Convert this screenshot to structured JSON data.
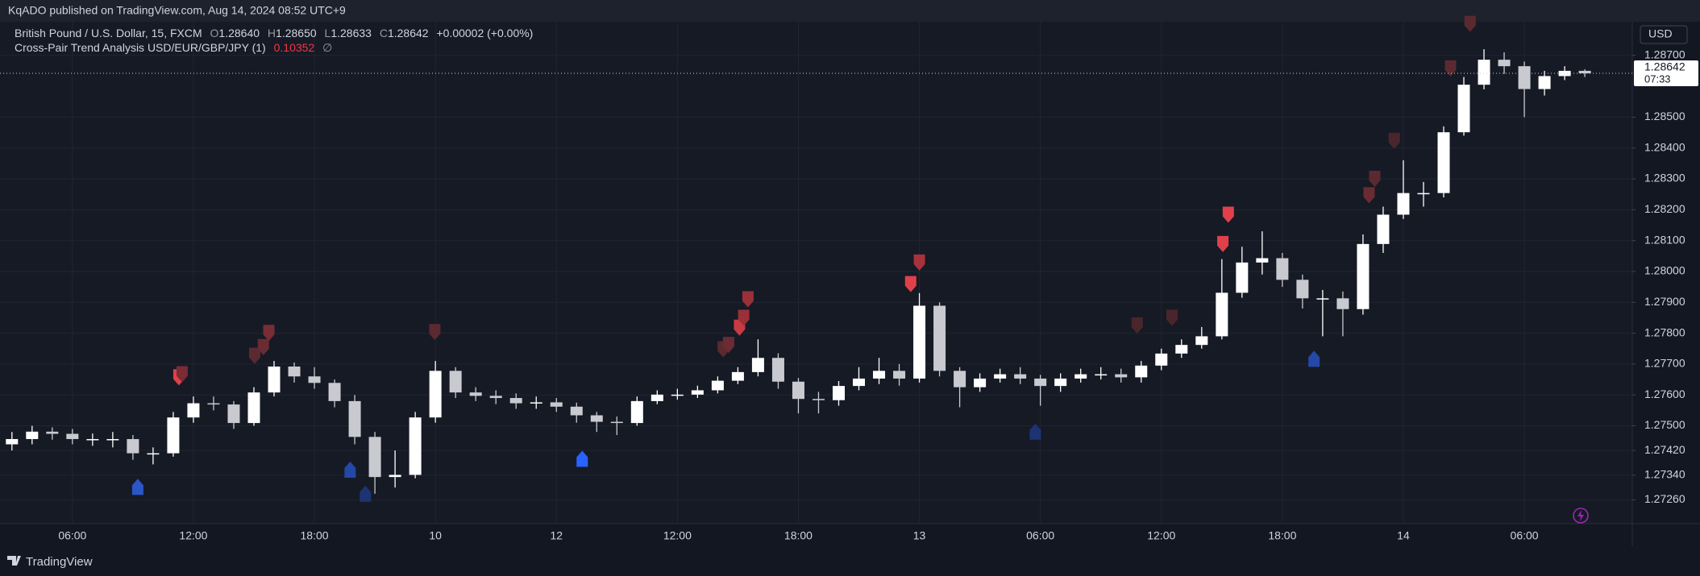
{
  "header": {
    "published": "KqADO published on TradingView.com, Aug 14, 2024 08:52 UTC+9"
  },
  "legend": {
    "symbol": "British Pound / U.S. Dollar, 15, FXCM",
    "o_label": "O",
    "open": "1.28640",
    "h_label": "H",
    "high": "1.28650",
    "l_label": "L",
    "low": "1.28633",
    "c_label": "C",
    "close": "1.28642",
    "change": "+0.00002 (+0.00%)",
    "indicator": "Cross-Pair Trend Analysis USD/EUR/GBP/JPY (1)",
    "indicator_value": "0.10352",
    "indicator_extra": "∅"
  },
  "price_axis": {
    "currency": "USD",
    "last_price": "1.28642",
    "countdown": "07:33"
  },
  "footer": {
    "brand": "TradingView"
  },
  "chart_data": {
    "type": "candlestick",
    "categories": [
      null,
      null,
      null,
      "06:00",
      null,
      null,
      null,
      null,
      null,
      "12:00",
      null,
      null,
      null,
      null,
      null,
      "18:00",
      null,
      null,
      null,
      null,
      null,
      "10",
      null,
      null,
      null,
      null,
      null,
      "12",
      null,
      null,
      null,
      null,
      null,
      "12:00",
      null,
      null,
      null,
      null,
      null,
      "18:00",
      null,
      null,
      null,
      null,
      null,
      "13",
      null,
      null,
      null,
      null,
      null,
      "06:00",
      null,
      null,
      null,
      null,
      null,
      "12:00",
      null,
      null,
      null,
      null,
      null,
      "18:00",
      null,
      null,
      null,
      null,
      null,
      "14",
      null,
      null,
      null,
      null,
      null,
      "06:00",
      null,
      null,
      null
    ],
    "open": [
      1.2744,
      1.27457,
      1.27481,
      1.27474,
      1.27457,
      1.27457,
      1.27457,
      1.27411,
      1.27411,
      1.27527,
      1.27573,
      1.27569,
      1.27509,
      1.27608,
      1.27692,
      1.2766,
      1.27639,
      1.2758,
      1.27464,
      1.27334,
      1.27341,
      1.27527,
      1.27678,
      1.27608,
      1.27597,
      1.2759,
      1.27573,
      1.27576,
      1.27562,
      1.27534,
      1.27513,
      1.27509,
      1.2758,
      1.27601,
      1.27601,
      1.27615,
      1.27646,
      1.27674,
      1.2772,
      1.27643,
      1.27587,
      1.27583,
      1.27629,
      1.27653,
      1.27678,
      1.27653,
      1.27889,
      1.27678,
      1.27625,
      1.27653,
      1.27667,
      1.27653,
      1.27629,
      1.27653,
      1.27667,
      1.27667,
      1.27657,
      1.27695,
      1.27734,
      1.27762,
      1.2779,
      1.27931,
      1.28029,
      1.28043,
      1.27973,
      1.27913,
      1.27913,
      1.27878,
      1.28089,
      1.28184,
      1.28254,
      1.28254,
      1.28451,
      1.28605,
      1.28686,
      1.28665,
      1.28591,
      1.28633,
      1.2865
    ],
    "high": [
      1.2748,
      1.275,
      1.27495,
      1.2749,
      1.27475,
      1.2748,
      1.2747,
      1.2743,
      1.27545,
      1.27595,
      1.27595,
      1.2758,
      1.27625,
      1.2771,
      1.27705,
      1.2769,
      1.2765,
      1.276,
      1.2748,
      1.2742,
      1.27545,
      1.2771,
      1.2769,
      1.27625,
      1.27615,
      1.27605,
      1.27595,
      1.2759,
      1.27575,
      1.27545,
      1.2753,
      1.27595,
      1.27615,
      1.2762,
      1.2763,
      1.2766,
      1.2769,
      1.2778,
      1.27735,
      1.27655,
      1.2761,
      1.27645,
      1.2769,
      1.2772,
      1.277,
      1.2793,
      1.279,
      1.2769,
      1.2767,
      1.27685,
      1.2769,
      1.27665,
      1.2767,
      1.27685,
      1.2769,
      1.27685,
      1.2771,
      1.2775,
      1.2778,
      1.2782,
      1.2804,
      1.2808,
      1.2813,
      1.2806,
      1.2799,
      1.2794,
      1.27935,
      1.2812,
      1.2821,
      1.2836,
      1.2829,
      1.2847,
      1.2863,
      1.2872,
      1.2871,
      1.2868,
      1.2865,
      1.28665,
      1.28655
    ],
    "low": [
      1.2742,
      1.2744,
      1.27455,
      1.2744,
      1.27435,
      1.2743,
      1.2739,
      1.27375,
      1.274,
      1.2751,
      1.2755,
      1.2749,
      1.275,
      1.27595,
      1.2764,
      1.2762,
      1.2756,
      1.2744,
      1.2728,
      1.273,
      1.2733,
      1.2751,
      1.2759,
      1.2758,
      1.2757,
      1.27555,
      1.27555,
      1.27545,
      1.2751,
      1.2748,
      1.2747,
      1.275,
      1.2757,
      1.27585,
      1.2759,
      1.27605,
      1.27635,
      1.2766,
      1.2762,
      1.2754,
      1.2754,
      1.27565,
      1.27615,
      1.27635,
      1.2763,
      1.2764,
      1.2766,
      1.2756,
      1.2761,
      1.2764,
      1.27635,
      1.27565,
      1.2761,
      1.2764,
      1.2765,
      1.2764,
      1.2764,
      1.2768,
      1.2772,
      1.2775,
      1.2778,
      1.27915,
      1.2799,
      1.2795,
      1.2788,
      1.2779,
      1.2779,
      1.2786,
      1.2806,
      1.2817,
      1.2821,
      1.2824,
      1.2844,
      1.2859,
      1.2864,
      1.285,
      1.2857,
      1.2862,
      1.2863
    ],
    "close": [
      1.27457,
      1.27481,
      1.27474,
      1.27457,
      1.27457,
      1.27457,
      1.27411,
      1.27411,
      1.27527,
      1.27573,
      1.27569,
      1.27509,
      1.27608,
      1.27692,
      1.2766,
      1.27639,
      1.2758,
      1.27464,
      1.27334,
      1.27341,
      1.27527,
      1.27678,
      1.27608,
      1.27597,
      1.2759,
      1.27573,
      1.27576,
      1.27562,
      1.27534,
      1.27513,
      1.27509,
      1.2758,
      1.27601,
      1.27601,
      1.27615,
      1.27646,
      1.27674,
      1.2772,
      1.27643,
      1.27587,
      1.27583,
      1.27629,
      1.27653,
      1.27678,
      1.27653,
      1.27889,
      1.27678,
      1.27625,
      1.27653,
      1.27667,
      1.27653,
      1.27629,
      1.27653,
      1.27667,
      1.27667,
      1.27657,
      1.27695,
      1.27734,
      1.27762,
      1.2779,
      1.27931,
      1.28029,
      1.28043,
      1.27973,
      1.27913,
      1.27913,
      1.27878,
      1.28089,
      1.28184,
      1.28254,
      1.28254,
      1.28451,
      1.28605,
      1.28686,
      1.28665,
      1.28591,
      1.28633,
      1.2865,
      1.28642
    ],
    "up_color": "#ffffff",
    "down_color": "#c8cad0",
    "ylim": [
      1.27183,
      1.28809
    ],
    "yticks": [
      {
        "value": 1.287,
        "label": "1.28700"
      },
      {
        "value": 1.285,
        "label": "1.28500"
      },
      {
        "value": 1.284,
        "label": "1.28400"
      },
      {
        "value": 1.283,
        "label": "1.28300"
      },
      {
        "value": 1.282,
        "label": "1.28200"
      },
      {
        "value": 1.281,
        "label": "1.28100"
      },
      {
        "value": 1.28,
        "label": "1.28000"
      },
      {
        "value": 1.279,
        "label": "1.27900"
      },
      {
        "value": 1.278,
        "label": "1.27800"
      },
      {
        "value": 1.277,
        "label": "1.27700"
      },
      {
        "value": 1.276,
        "label": "1.27600"
      },
      {
        "value": 1.275,
        "label": "1.27500"
      },
      {
        "value": 1.2742,
        "label": "1.27420"
      },
      {
        "value": 1.2734,
        "label": "1.27340"
      },
      {
        "value": 1.2726,
        "label": "1.27260"
      }
    ],
    "grid": true,
    "signals": [
      {
        "x": 8.28,
        "y": 1.27657,
        "direction": "down",
        "color": "#e0404a"
      },
      {
        "x": 8.44,
        "y": 1.27667,
        "direction": "down",
        "color": "#7a2c34"
      },
      {
        "x": 12.04,
        "y": 1.27727,
        "direction": "down",
        "color": "#5a2a30"
      },
      {
        "x": 12.47,
        "y": 1.27755,
        "direction": "down",
        "color": "#6a2b32"
      },
      {
        "x": 12.74,
        "y": 1.27801,
        "direction": "down",
        "color": "#7a2c34"
      },
      {
        "x": 20.97,
        "y": 1.27804,
        "direction": "down",
        "color": "#5a2a30"
      },
      {
        "x": 35.27,
        "y": 1.27748,
        "direction": "down",
        "color": "#5a2a30"
      },
      {
        "x": 35.54,
        "y": 1.27762,
        "direction": "down",
        "color": "#6a2b32"
      },
      {
        "x": 36.08,
        "y": 1.27818,
        "direction": "down",
        "color": "#c83a44"
      },
      {
        "x": 36.29,
        "y": 1.2785,
        "direction": "down",
        "color": "#9a3038"
      },
      {
        "x": 36.5,
        "y": 1.2791,
        "direction": "down",
        "color": "#9a3038"
      },
      {
        "x": 44.57,
        "y": 1.27959,
        "direction": "down",
        "color": "#e0404a"
      },
      {
        "x": 45.0,
        "y": 1.28029,
        "direction": "down",
        "color": "#a8323b"
      },
      {
        "x": 55.8,
        "y": 1.27825,
        "direction": "down",
        "color": "#4a262c"
      },
      {
        "x": 57.53,
        "y": 1.2785,
        "direction": "down",
        "color": "#4a262c"
      },
      {
        "x": 60.05,
        "y": 1.28089,
        "direction": "down",
        "color": "#e0404a"
      },
      {
        "x": 60.32,
        "y": 1.28184,
        "direction": "down",
        "color": "#e0404a"
      },
      {
        "x": 67.3,
        "y": 1.28247,
        "direction": "down",
        "color": "#6a2b32"
      },
      {
        "x": 67.58,
        "y": 1.283,
        "direction": "down",
        "color": "#5a2a30"
      },
      {
        "x": 68.55,
        "y": 1.28423,
        "direction": "down",
        "color": "#4a262c"
      },
      {
        "x": 71.34,
        "y": 1.28658,
        "direction": "down",
        "color": "#5a2a30"
      },
      {
        "x": 72.31,
        "y": 1.28802,
        "direction": "down",
        "color": "#5a2a30"
      },
      {
        "x": 6.24,
        "y": 1.27302,
        "direction": "up",
        "color": "#2a56c6"
      },
      {
        "x": 16.77,
        "y": 1.27358,
        "direction": "up",
        "color": "#2448a8"
      },
      {
        "x": 17.53,
        "y": 1.2728,
        "direction": "up",
        "color": "#1c3474"
      },
      {
        "x": 28.28,
        "y": 1.27393,
        "direction": "up",
        "color": "#2962ff"
      },
      {
        "x": 50.75,
        "y": 1.27481,
        "direction": "up",
        "color": "#1c3474"
      },
      {
        "x": 64.57,
        "y": 1.27717,
        "direction": "up",
        "color": "#2448a8"
      }
    ]
  }
}
